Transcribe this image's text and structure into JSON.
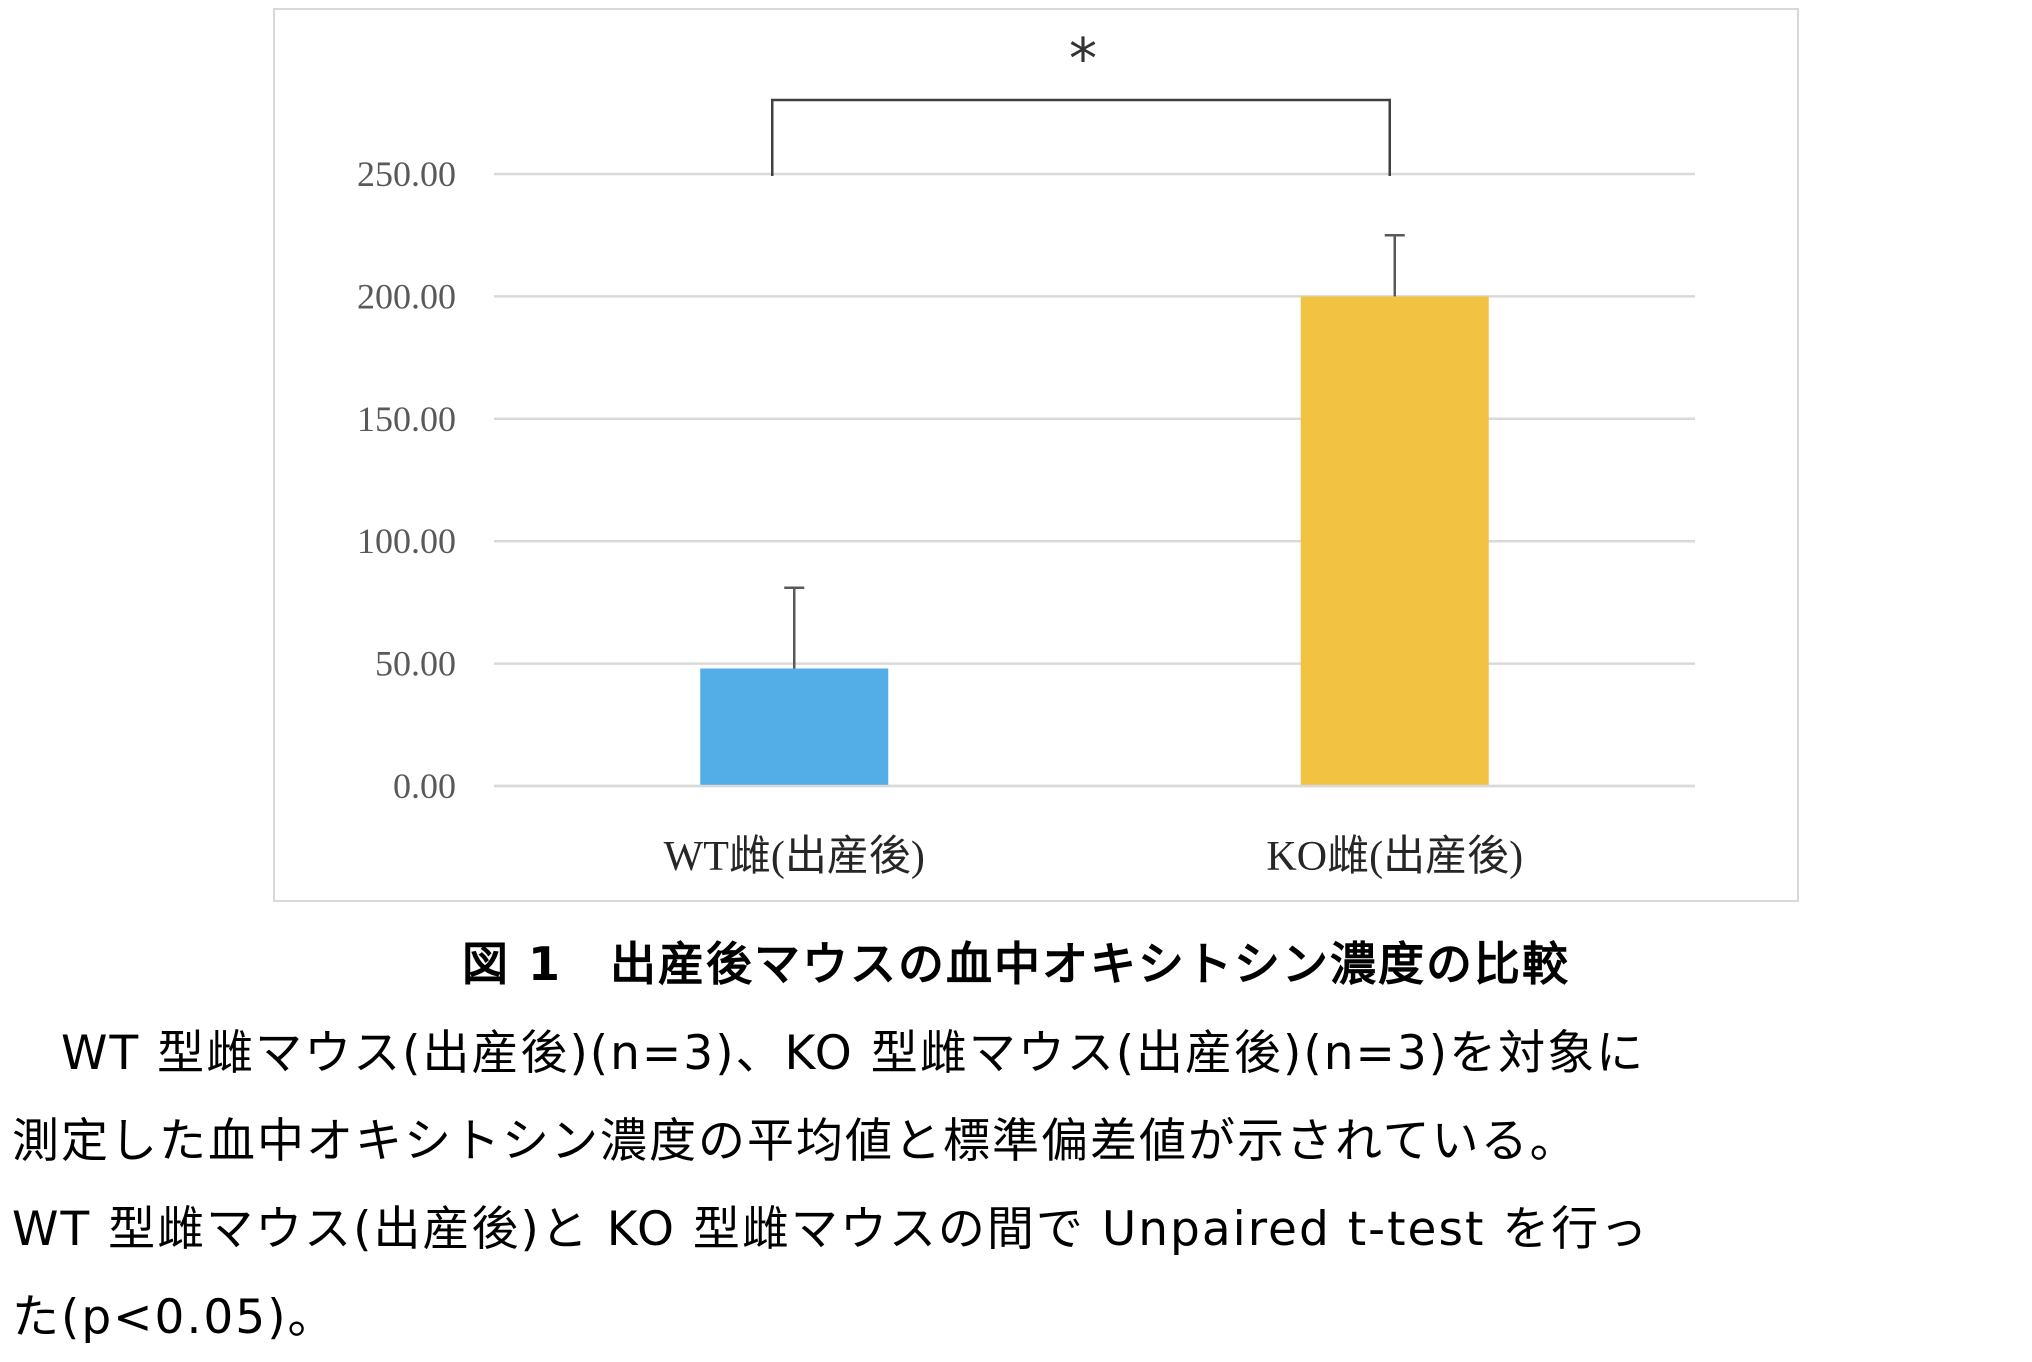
{
  "chart_data": {
    "type": "bar",
    "categories": [
      "WT雌(出産後)",
      "KO雌(出産後)"
    ],
    "values": [
      48,
      200
    ],
    "error": [
      33,
      25
    ],
    "colors": [
      "#53aee8",
      "#f2c242"
    ],
    "yticks": [
      "0.00",
      "50.00",
      "100.00",
      "150.00",
      "200.00",
      "250.00"
    ],
    "ylim": [
      0,
      250
    ],
    "grid": true,
    "significance": {
      "between": [
        0,
        1
      ],
      "label": "*"
    }
  },
  "caption": {
    "title": "図 1　出産後マウスの血中オキシトシン濃度の比較",
    "lines": [
      "　WT 型雌マウス(出産後)(n=3)、KO 型雌マウス(出産後)(n=3)を対象に",
      "測定した血中オキシトシン濃度の平均値と標準偏差値が示されている。",
      "WT 型雌マウス(出産後)と KO 型雌マウスの間で Unpaired  t-test を行っ",
      "た(p<0.05)。"
    ]
  }
}
